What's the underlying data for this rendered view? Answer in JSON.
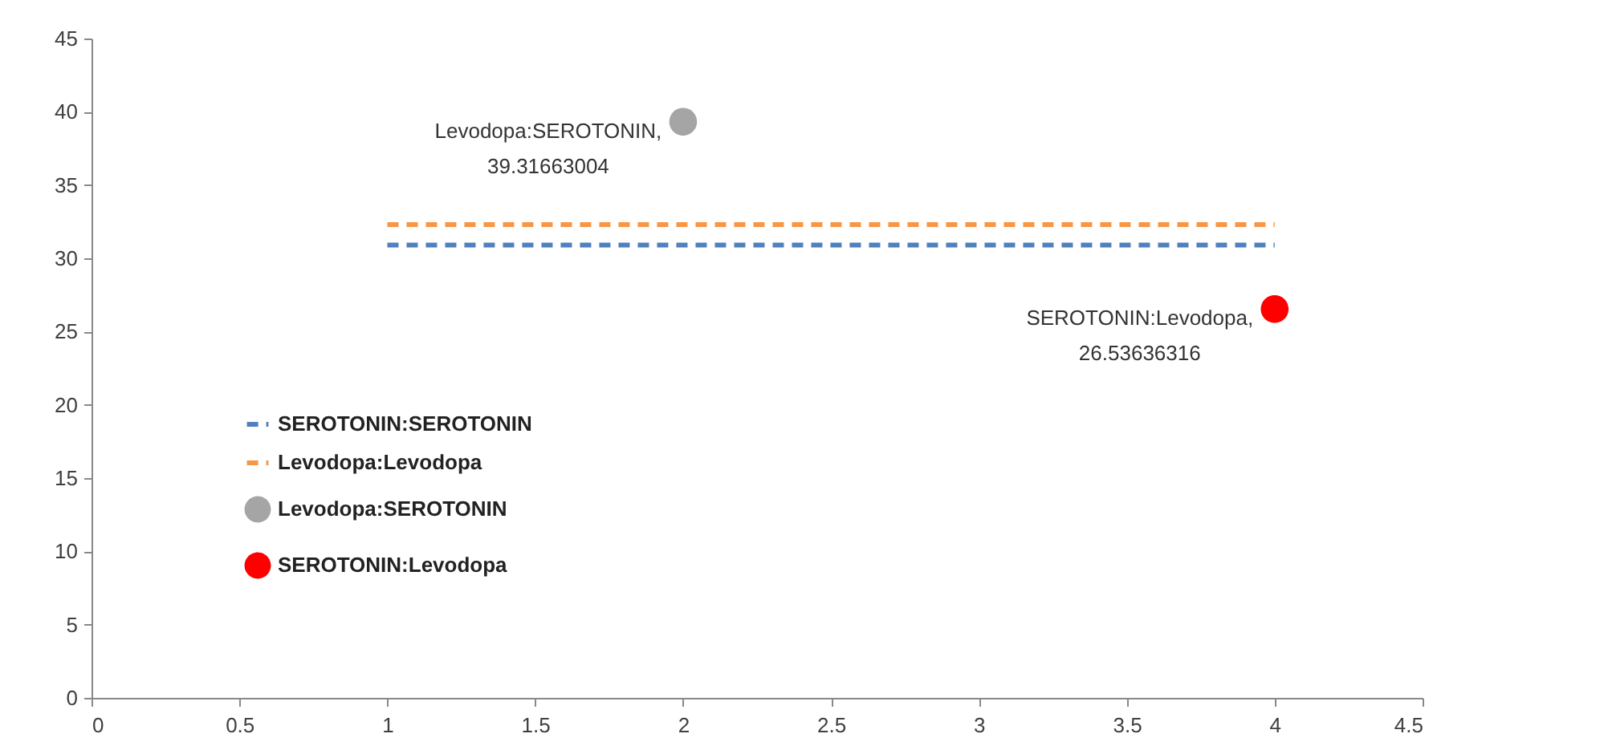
{
  "chart_data": {
    "type": "scatter",
    "xlim": [
      0,
      4.5
    ],
    "xticks": [
      0,
      0.5,
      1,
      1.5,
      2,
      2.5,
      3,
      3.5,
      4,
      4.5
    ],
    "ylim": [
      0,
      45
    ],
    "yticks": [
      0,
      5,
      10,
      15,
      20,
      25,
      30,
      35,
      40,
      45
    ],
    "grid": false,
    "legend": "left",
    "series": [
      {
        "name": "SEROTONIN:SEROTONIN",
        "type": "line",
        "line_style": "dashed",
        "marker": "none",
        "color": "#4f81bd",
        "x": [
          1,
          4
        ],
        "values": [
          30.9,
          30.9
        ]
      },
      {
        "name": "Levodopa:Levodopa",
        "type": "line",
        "line_style": "dashed",
        "marker": "none",
        "color": "#f79646",
        "x": [
          1,
          4
        ],
        "values": [
          32.3,
          32.3
        ]
      },
      {
        "name": "Levodopa:SEROTONIN",
        "type": "scatter",
        "marker": "circle",
        "color": "#a5a5a5",
        "x": [
          2
        ],
        "values": [
          39.31663004
        ],
        "value_labels": [
          "Levodopa:SEROTONIN, 39.31663004"
        ]
      },
      {
        "name": "SEROTONIN:Levodopa",
        "type": "scatter",
        "marker": "circle",
        "color": "#ff0000",
        "x": [
          4
        ],
        "values": [
          26.53636316
        ],
        "value_labels": [
          "SEROTONIN:Levodopa, 26.53636316"
        ]
      }
    ]
  }
}
